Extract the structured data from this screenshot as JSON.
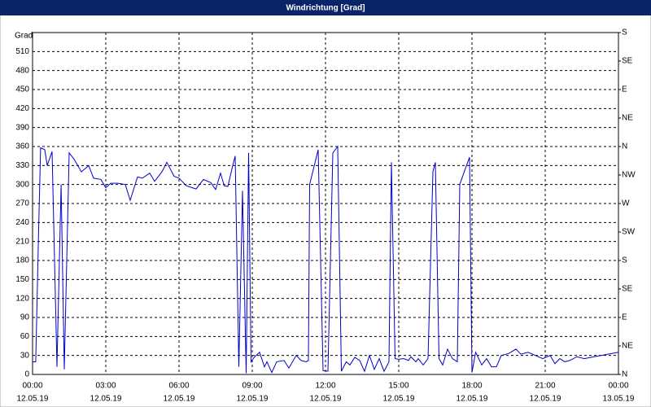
{
  "chart_data": {
    "type": "line",
    "title": "Windrichtung [Grad]",
    "y_label": "Grad",
    "color": "#0000c8",
    "grid": true,
    "xlim": [
      0,
      24
    ],
    "xticks": [
      {
        "value": 0,
        "label": "00:00",
        "date": "12.05.19"
      },
      {
        "value": 3,
        "label": "03:00",
        "date": "12.05.19"
      },
      {
        "value": 6,
        "label": "06:00",
        "date": "12.05.19"
      },
      {
        "value": 9,
        "label": "09:00",
        "date": "12.05.19"
      },
      {
        "value": 12,
        "label": "12:00",
        "date": "12.05.19"
      },
      {
        "value": 15,
        "label": "15:00",
        "date": "12.05.19"
      },
      {
        "value": 18,
        "label": "18:00",
        "date": "12.05.19"
      },
      {
        "value": 21,
        "label": "21:00",
        "date": "12.05.19"
      },
      {
        "value": 24,
        "label": "00:00",
        "date": "13.05.19"
      }
    ],
    "ylim": [
      0,
      540
    ],
    "yticks": [
      0,
      30,
      60,
      90,
      120,
      150,
      180,
      210,
      240,
      270,
      300,
      330,
      360,
      390,
      420,
      450,
      480,
      510
    ],
    "y2lim": [
      0,
      540
    ],
    "y2ticks": [
      {
        "value": 0,
        "label": "N"
      },
      {
        "value": 45,
        "label": "NE"
      },
      {
        "value": 90,
        "label": "E"
      },
      {
        "value": 135,
        "label": "SE"
      },
      {
        "value": 180,
        "label": "S"
      },
      {
        "value": 225,
        "label": "SW"
      },
      {
        "value": 270,
        "label": "W"
      },
      {
        "value": 315,
        "label": "NW"
      },
      {
        "value": 360,
        "label": "N"
      },
      {
        "value": 405,
        "label": "NE"
      },
      {
        "value": 450,
        "label": "E"
      },
      {
        "value": 495,
        "label": "SE"
      },
      {
        "value": 540,
        "label": "S"
      }
    ],
    "x": [
      0.0,
      0.13,
      0.25,
      0.33,
      0.5,
      0.6,
      0.8,
      1.0,
      1.17,
      1.3,
      1.5,
      1.7,
      2.0,
      2.3,
      2.5,
      2.8,
      3.0,
      3.2,
      3.5,
      3.8,
      4.0,
      4.3,
      4.5,
      4.8,
      5.0,
      5.3,
      5.5,
      5.8,
      6.0,
      6.3,
      6.7,
      7.0,
      7.3,
      7.5,
      7.7,
      7.85,
      8.0,
      8.2,
      8.3,
      8.45,
      8.6,
      8.75,
      8.85,
      8.95,
      9.1,
      9.3,
      9.5,
      9.6,
      9.8,
      10.0,
      10.3,
      10.5,
      10.8,
      11.0,
      11.2,
      11.3,
      11.35,
      11.7,
      11.9,
      12.1,
      12.3,
      12.5,
      12.65,
      12.85,
      13.0,
      13.2,
      13.4,
      13.6,
      13.8,
      14.0,
      14.2,
      14.4,
      14.6,
      14.7,
      14.85,
      15.0,
      15.2,
      15.4,
      15.5,
      15.7,
      15.8,
      16.0,
      16.2,
      16.4,
      16.5,
      16.65,
      16.8,
      17.0,
      17.2,
      17.4,
      17.5,
      17.7,
      17.9,
      18.0,
      18.15,
      18.4,
      18.6,
      18.8,
      19.0,
      19.2,
      19.5,
      19.8,
      20.0,
      20.3,
      20.6,
      20.9,
      21.2,
      21.4,
      21.6,
      21.8,
      22.0,
      22.3,
      22.6,
      23.0,
      23.3,
      23.7,
      24.0
    ],
    "values": [
      20,
      20,
      230,
      358,
      355,
      330,
      352,
      12,
      300,
      8,
      350,
      340,
      320,
      330,
      310,
      308,
      295,
      302,
      302,
      300,
      275,
      312,
      310,
      318,
      305,
      320,
      335,
      313,
      310,
      298,
      293,
      308,
      303,
      292,
      318,
      298,
      297,
      330,
      345,
      12,
      290,
      2,
      350,
      20,
      28,
      35,
      12,
      20,
      3,
      20,
      22,
      10,
      30,
      22,
      20,
      22,
      300,
      355,
      6,
      5,
      350,
      360,
      5,
      20,
      15,
      27,
      22,
      5,
      30,
      8,
      25,
      5,
      20,
      335,
      25,
      24,
      25,
      22,
      28,
      20,
      25,
      15,
      25,
      320,
      335,
      25,
      15,
      40,
      25,
      20,
      300,
      322,
      343,
      3,
      35,
      15,
      25,
      12,
      12,
      30,
      33,
      40,
      32,
      35,
      30,
      25,
      30,
      17,
      25,
      20,
      22,
      28,
      25,
      28,
      30,
      33,
      35
    ]
  }
}
